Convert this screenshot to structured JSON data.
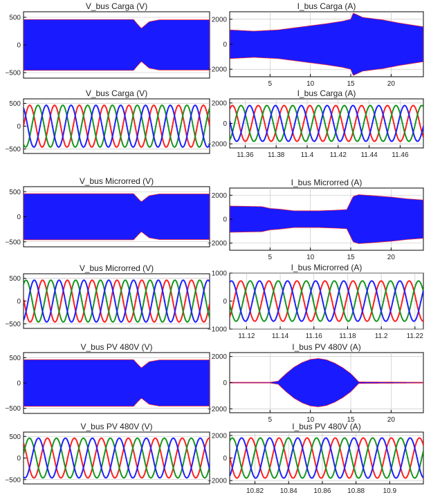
{
  "colors": {
    "envelope": "#1a1aff",
    "envelope_edge": "#ff2020",
    "phase_a": "#ff1f1f",
    "phase_b": "#14961e",
    "phase_c": "#1f1fff"
  },
  "chart_data": [
    {
      "id": "vbus-carga-full",
      "type": "area",
      "title": "V_bus Carga (V)",
      "xlim": [
        0,
        24
      ],
      "ylim": [
        -600,
        600
      ],
      "xticks": [],
      "yticks": [
        -500,
        0,
        500
      ],
      "grid": true,
      "envelope": {
        "x": [
          0,
          14.2,
          14.8,
          15.2,
          16.2,
          17.5,
          24
        ],
        "upper": [
          460,
          460,
          360,
          300,
          420,
          455,
          455
        ]
      }
    },
    {
      "id": "ibus-carga-full",
      "type": "area",
      "title": "I_bus Carga (A)",
      "xlim": [
        0,
        24
      ],
      "ylim": [
        -2600,
        2600
      ],
      "xticks": [
        5,
        10,
        15,
        20
      ],
      "yticks": [
        -2000,
        0,
        2000
      ],
      "grid": true,
      "envelope": {
        "x": [
          0,
          3,
          6,
          9,
          12,
          14,
          15,
          15.3,
          16.5,
          19,
          21,
          24
        ],
        "upper": [
          1150,
          1050,
          1150,
          1400,
          1650,
          1850,
          2000,
          2500,
          2150,
          1950,
          1700,
          1400
        ]
      }
    },
    {
      "id": "vbus-carga-zoom",
      "type": "line",
      "title": "V_bus Carga (V)",
      "xlim": [
        11.35,
        11.475
      ],
      "ylim": [
        -600,
        600
      ],
      "xticks": [],
      "yticks": [
        -500,
        0,
        500
      ],
      "grid": true,
      "waveform": {
        "amplitude": 460,
        "frequency": 60,
        "phase": 0
      }
    },
    {
      "id": "ibus-carga-zoom",
      "type": "line",
      "title": "I_bus Carga (A)",
      "xlim": [
        11.35,
        11.475
      ],
      "ylim": [
        -2400,
        2400
      ],
      "xticks": [
        11.36,
        11.38,
        11.4,
        11.42,
        11.44,
        11.46
      ],
      "xtick_labels": [
        "11.36",
        "11.38",
        "11.4",
        "11.42",
        "11.44",
        "11.46"
      ],
      "yticks": [
        -2000,
        0,
        2000
      ],
      "grid": true,
      "waveform": {
        "amplitude": 1750,
        "frequency": 60,
        "phase": 0.9
      }
    },
    {
      "id": "vbus-microrred-full",
      "type": "area",
      "title": "V_bus Microrred (V)",
      "xlim": [
        0,
        24
      ],
      "ylim": [
        -600,
        600
      ],
      "xticks": [],
      "yticks": [
        -500,
        0,
        500
      ],
      "grid": true,
      "envelope": {
        "x": [
          0,
          14.2,
          14.8,
          15.2,
          16.2,
          17.5,
          24
        ],
        "upper": [
          460,
          460,
          360,
          300,
          420,
          455,
          455
        ]
      }
    },
    {
      "id": "ibus-microrred-full",
      "type": "area",
      "title": "I_bus Microrred (A)",
      "xlim": [
        0,
        24
      ],
      "ylim": [
        -2600,
        2600
      ],
      "xticks": [
        5,
        10,
        15,
        20
      ],
      "yticks": [
        -2000,
        0,
        2000
      ],
      "grid": true,
      "envelope": {
        "x": [
          0,
          4,
          5,
          6,
          8,
          11,
          13,
          14.5,
          15.3,
          16,
          18,
          20,
          22,
          24
        ],
        "upper": [
          1100,
          1050,
          900,
          850,
          700,
          700,
          750,
          800,
          1900,
          2050,
          1950,
          1850,
          1700,
          1600
        ]
      }
    },
    {
      "id": "vbus-microrred-zoom",
      "type": "line",
      "title": "V_bus Microrred (V)",
      "xlim": [
        11.085,
        11.21
      ],
      "ylim": [
        -600,
        600
      ],
      "xticks": [],
      "yticks": [
        -500,
        0,
        500
      ],
      "grid": true,
      "waveform": {
        "amplitude": 460,
        "frequency": 60,
        "phase": 2.4
      }
    },
    {
      "id": "ibus-microrred-zoom",
      "type": "line",
      "title": "I_bus Microrred (A)",
      "xlim": [
        11.11,
        11.225
      ],
      "ylim": [
        -1000,
        1000
      ],
      "xticks": [
        11.12,
        11.14,
        11.16,
        11.18,
        11.2,
        11.22
      ],
      "xtick_labels": [
        "11.12",
        "11.14",
        "11.16",
        "11.18",
        "11.2",
        "11.22"
      ],
      "yticks": [
        -1000,
        0,
        1000
      ],
      "grid": true,
      "waveform": {
        "amplitude": 720,
        "frequency": 60,
        "phase": 1.6
      }
    },
    {
      "id": "vbus-pv-full",
      "type": "area",
      "title": "V_bus PV 480V (V)",
      "xlim": [
        0,
        24
      ],
      "ylim": [
        -600,
        600
      ],
      "xticks": [],
      "yticks": [
        -500,
        0,
        500
      ],
      "grid": true,
      "envelope": {
        "x": [
          0,
          14.2,
          14.8,
          15.2,
          16.2,
          17.5,
          24
        ],
        "upper": [
          460,
          460,
          360,
          300,
          420,
          455,
          455
        ]
      }
    },
    {
      "id": "ibus-pv-full",
      "type": "area",
      "title": "I_bus PV 480V (A)",
      "xlim": [
        0,
        24
      ],
      "ylim": [
        -2300,
        2300
      ],
      "xticks": [
        5,
        10,
        15,
        20
      ],
      "yticks": [
        -2000,
        0,
        2000
      ],
      "grid": true,
      "envelope": {
        "x": [
          0,
          5,
          6,
          7,
          8,
          9,
          10,
          11,
          12,
          13,
          14,
          15,
          16,
          24
        ],
        "upper": [
          30,
          30,
          120,
          700,
          1200,
          1550,
          1780,
          1850,
          1750,
          1500,
          1150,
          700,
          60,
          30
        ]
      }
    },
    {
      "id": "vbus-pv-zoom",
      "type": "line",
      "title": "V_bus PV 480V (V)",
      "xlim": [
        10.805,
        10.92
      ],
      "ylim": [
        -600,
        600
      ],
      "xticks": [],
      "yticks": [
        -500,
        0,
        500
      ],
      "grid": true,
      "waveform": {
        "amplitude": 460,
        "frequency": 60,
        "phase": 0.4
      }
    },
    {
      "id": "ibus-pv-zoom",
      "type": "line",
      "title": "I_bus PV 480V (A)",
      "xlim": [
        10.805,
        10.92
      ],
      "ylim": [
        -2300,
        2300
      ],
      "xticks": [
        10.82,
        10.84,
        10.86,
        10.88,
        10.9
      ],
      "xtick_labels": [
        "10.82",
        "10.84",
        "10.86",
        "10.88",
        "10.9"
      ],
      "yticks": [
        -2000,
        0,
        2000
      ],
      "grid": true,
      "waveform": {
        "amplitude": 1780,
        "frequency": 60,
        "phase": 1.2
      }
    }
  ]
}
